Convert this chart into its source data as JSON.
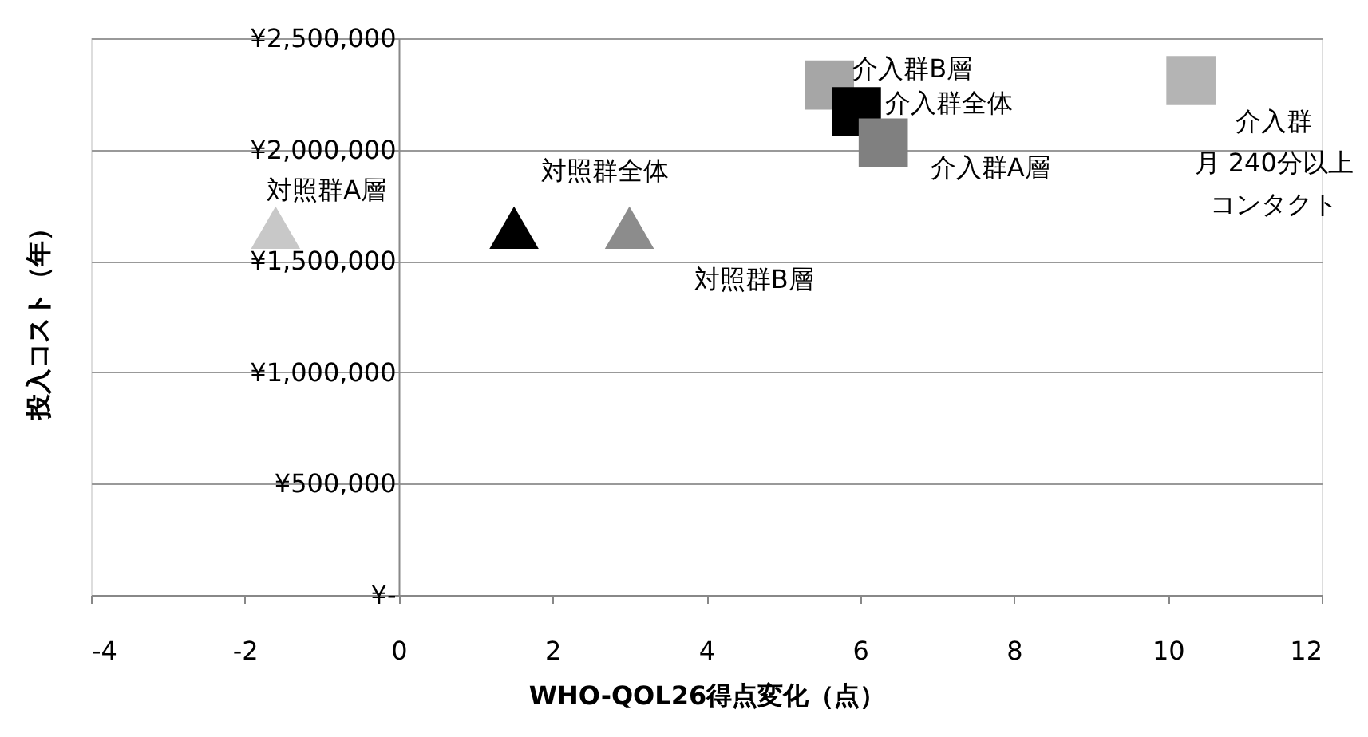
{
  "chart_data": {
    "type": "scatter",
    "xlabel": "WHO-QOL26得点変化（点）",
    "ylabel": "投入コスト（年）",
    "xlim": [
      -4,
      12
    ],
    "xticks": [
      -4,
      -2,
      0,
      2,
      4,
      6,
      8,
      10,
      12
    ],
    "ylim": [
      0,
      2500000
    ],
    "yticks": [
      {
        "value": 0,
        "label": "¥-"
      },
      {
        "value": 500000,
        "label": "¥500,000"
      },
      {
        "value": 1000000,
        "label": "¥1,000,000"
      },
      {
        "value": 1500000,
        "label": "¥1,500,000"
      },
      {
        "value": 2000000,
        "label": "¥2,000,000"
      },
      {
        "value": 2500000,
        "label": "¥2,500,000"
      }
    ],
    "grid": "y",
    "legend": false,
    "series": [
      {
        "name": "対照群A層",
        "color": "#c8c8c8",
        "marker": "triangle",
        "x": [
          -1.6
        ],
        "values": [
          1650000
        ]
      },
      {
        "name": "対照群全体",
        "color": "#000000",
        "marker": "triangle",
        "x": [
          1.5
        ],
        "values": [
          1650000
        ]
      },
      {
        "name": "対照群B層",
        "color": "#8c8c8c",
        "marker": "triangle",
        "x": [
          3.0
        ],
        "values": [
          1650000
        ]
      },
      {
        "name": "介入群B層",
        "color": "#a6a6a6",
        "marker": "square",
        "x": [
          5.6
        ],
        "values": [
          2290000
        ]
      },
      {
        "name": "介入群全体",
        "color": "#000000",
        "marker": "square",
        "x": [
          5.95
        ],
        "values": [
          2170000
        ]
      },
      {
        "name": "介入群A層",
        "color": "#808080",
        "marker": "square",
        "x": [
          6.3
        ],
        "values": [
          2030000
        ]
      },
      {
        "name": "介入群月 240分以上コンタクト",
        "color": "#b4b4b4",
        "marker": "square",
        "x": [
          10.3
        ],
        "values": [
          2310000
        ]
      }
    ]
  }
}
